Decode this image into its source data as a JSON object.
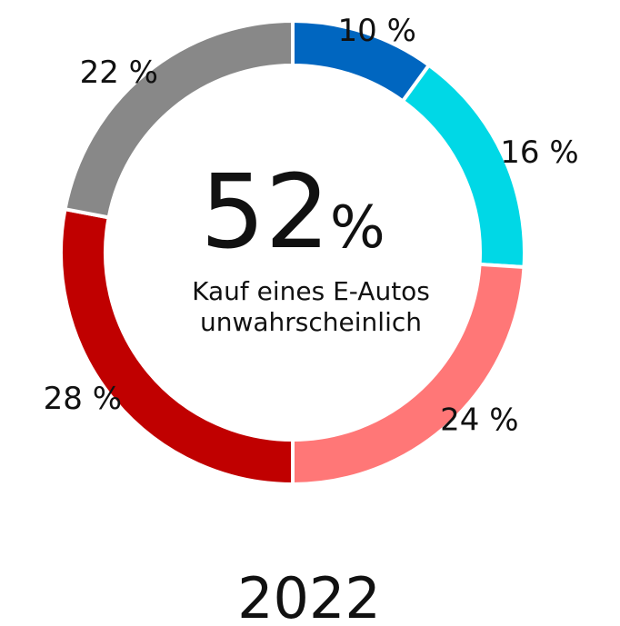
{
  "chart_data": {
    "type": "donut",
    "values": [
      10,
      16,
      24,
      28,
      22
    ],
    "value_labels": [
      "10 %",
      "16 %",
      "24 %",
      "28 %",
      "22 %"
    ],
    "colors": [
      "#0066c0",
      "#00d8e6",
      "#ff7777",
      "#c00000",
      "#888888"
    ],
    "center_value": 52,
    "center_unit": "%",
    "center_text": [
      "Kauf eines E-Autos",
      "unwahrscheinlich"
    ],
    "caption": "2022"
  }
}
